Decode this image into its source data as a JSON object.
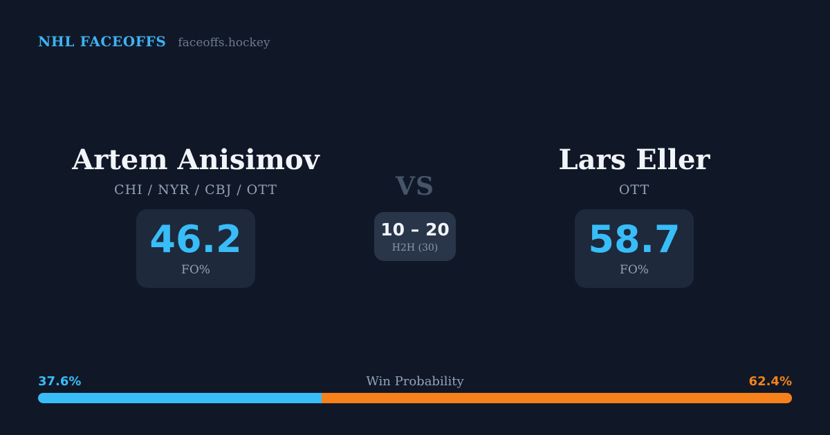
{
  "theme": {
    "background": "#101827",
    "card_background": "#1e293b",
    "h2h_card_background": "#293548",
    "accent_blue": "#38bdf8",
    "accent_orange": "#f6811b",
    "text_primary": "#f1f5f9",
    "text_muted": "#94a3b8",
    "vs_color": "#475569"
  },
  "header": {
    "brand": "NHL FACEOFFS",
    "site": "faceoffs.hockey"
  },
  "players": {
    "left": {
      "name": "Artem Anisimov",
      "teams": "CHI / NYR / CBJ / OTT",
      "fo_pct": "46.2",
      "stat_label": "FO%"
    },
    "right": {
      "name": "Lars Eller",
      "teams": "OTT",
      "fo_pct": "58.7",
      "stat_label": "FO%"
    }
  },
  "matchup": {
    "vs_label": "VS",
    "h2h_score": "10 – 20",
    "h2h_sample_label": "H2H (30)"
  },
  "win_probability": {
    "label": "Win Probability",
    "left_pct_text": "37.6%",
    "right_pct_text": "62.4%",
    "left_value": 37.6,
    "right_value": 62.4
  }
}
